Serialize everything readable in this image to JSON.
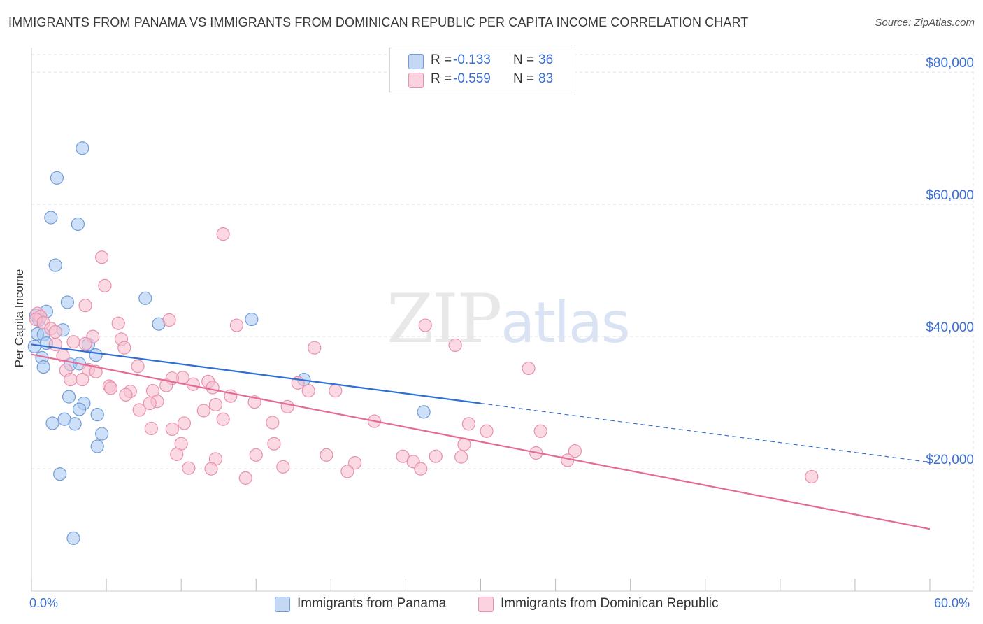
{
  "title": "IMMIGRANTS FROM PANAMA VS IMMIGRANTS FROM DOMINICAN REPUBLIC PER CAPITA INCOME CORRELATION CHART",
  "source": "Source: ZipAtlas.com",
  "watermark": {
    "zip": "ZIP",
    "atlas": "atlas"
  },
  "colors": {
    "blue_fill": "#aecbf2",
    "blue_stroke": "#6f9bd8",
    "blue_line": "#2e6fd3",
    "pink_fill": "#f7bfd0",
    "pink_stroke": "#e890ad",
    "pink_line": "#e36b95",
    "tick_text": "#3a6fd6",
    "grid": "#e2e2e2"
  },
  "legend": {
    "rows": [
      {
        "r_label": "R =",
        "r_value": "-0.133",
        "n_label": "N =",
        "n_value": "36"
      },
      {
        "r_label": "R =",
        "r_value": "-0.559",
        "n_label": "N =",
        "n_value": "83"
      }
    ]
  },
  "bottom_legend": {
    "panama": "Immigrants from Panama",
    "dominican": "Immigrants from Dominican Republic"
  },
  "chart_data": {
    "type": "scatter",
    "title": "IMMIGRANTS FROM PANAMA VS IMMIGRANTS FROM DOMINICAN REPUBLIC PER CAPITA INCOME CORRELATION CHART",
    "xlabel": "",
    "ylabel": "Per Capita Income",
    "xlim": [
      0,
      60
    ],
    "ylim": [
      1500,
      83500
    ],
    "x_tick_labels": [
      "0.0%",
      "60.0%"
    ],
    "y_ticks": [
      20000,
      40000,
      60000,
      80000
    ],
    "y_tick_labels": [
      "$20,000",
      "$40,000",
      "$60,000",
      "$80,000"
    ],
    "series": [
      {
        "name": "Immigrants from Panama",
        "color": "blue",
        "points": [
          [
            3.4,
            68500
          ],
          [
            1.7,
            64000
          ],
          [
            1.3,
            58000
          ],
          [
            3.1,
            57000
          ],
          [
            1.6,
            50800
          ],
          [
            7.6,
            45800
          ],
          [
            2.4,
            45200
          ],
          [
            1.0,
            43800
          ],
          [
            0.3,
            43200
          ],
          [
            0.5,
            42500
          ],
          [
            14.7,
            42600
          ],
          [
            8.5,
            41900
          ],
          [
            2.1,
            41000
          ],
          [
            0.4,
            40400
          ],
          [
            0.8,
            40300
          ],
          [
            1.0,
            39000
          ],
          [
            3.8,
            38800
          ],
          [
            4.3,
            37200
          ],
          [
            0.7,
            36800
          ],
          [
            2.6,
            35800
          ],
          [
            3.2,
            35900
          ],
          [
            0.8,
            35400
          ],
          [
            18.2,
            33500
          ],
          [
            2.5,
            30900
          ],
          [
            3.5,
            29900
          ],
          [
            3.2,
            29000
          ],
          [
            26.2,
            28600
          ],
          [
            4.4,
            28200
          ],
          [
            2.2,
            27500
          ],
          [
            1.4,
            26900
          ],
          [
            2.9,
            26800
          ],
          [
            4.7,
            25300
          ],
          [
            4.4,
            23400
          ],
          [
            1.9,
            19200
          ],
          [
            2.8,
            9500
          ],
          [
            0.2,
            38500
          ]
        ],
        "trend": {
          "x": [
            0,
            30
          ],
          "y": [
            38800,
            29900
          ],
          "extended_to": [
            60,
            21000
          ]
        }
      },
      {
        "name": "Immigrants from Dominican Republic",
        "color": "pink",
        "points": [
          [
            12.8,
            55500
          ],
          [
            4.7,
            52000
          ],
          [
            4.9,
            47700
          ],
          [
            3.6,
            44700
          ],
          [
            0.4,
            43500
          ],
          [
            0.6,
            43000
          ],
          [
            0.3,
            42600
          ],
          [
            0.8,
            42100
          ],
          [
            9.2,
            42500
          ],
          [
            5.8,
            42000
          ],
          [
            13.7,
            41700
          ],
          [
            26.3,
            41700
          ],
          [
            1.3,
            41200
          ],
          [
            1.6,
            40700
          ],
          [
            4.1,
            40000
          ],
          [
            6.0,
            39600
          ],
          [
            2.8,
            39200
          ],
          [
            3.6,
            38900
          ],
          [
            1.6,
            38800
          ],
          [
            28.3,
            38700
          ],
          [
            18.9,
            38300
          ],
          [
            6.2,
            38300
          ],
          [
            2.1,
            37100
          ],
          [
            7.1,
            35500
          ],
          [
            33.2,
            35200
          ],
          [
            3.8,
            35000
          ],
          [
            2.3,
            34900
          ],
          [
            4.3,
            34700
          ],
          [
            10.1,
            33800
          ],
          [
            9.4,
            33700
          ],
          [
            2.6,
            33500
          ],
          [
            3.4,
            33500
          ],
          [
            11.8,
            33200
          ],
          [
            17.8,
            33000
          ],
          [
            10.8,
            32800
          ],
          [
            9.0,
            32600
          ],
          [
            12.1,
            32300
          ],
          [
            5.2,
            32500
          ],
          [
            5.3,
            32200
          ],
          [
            6.6,
            31700
          ],
          [
            8.1,
            31800
          ],
          [
            18.5,
            31800
          ],
          [
            20.3,
            31800
          ],
          [
            6.3,
            31200
          ],
          [
            13.3,
            31000
          ],
          [
            8.4,
            30200
          ],
          [
            14.9,
            30100
          ],
          [
            7.9,
            29900
          ],
          [
            12.3,
            29700
          ],
          [
            17.1,
            29400
          ],
          [
            7.2,
            28900
          ],
          [
            11.5,
            28800
          ],
          [
            12.8,
            27500
          ],
          [
            22.9,
            27200
          ],
          [
            16.1,
            27000
          ],
          [
            10.2,
            26900
          ],
          [
            29.2,
            26800
          ],
          [
            8.0,
            26100
          ],
          [
            9.4,
            26000
          ],
          [
            30.4,
            25700
          ],
          [
            34.0,
            25700
          ],
          [
            10.0,
            23800
          ],
          [
            16.2,
            23800
          ],
          [
            28.9,
            23700
          ],
          [
            36.3,
            22700
          ],
          [
            33.7,
            22400
          ],
          [
            9.7,
            22200
          ],
          [
            15.0,
            22100
          ],
          [
            19.7,
            22100
          ],
          [
            24.8,
            21900
          ],
          [
            27.0,
            21900
          ],
          [
            28.7,
            21800
          ],
          [
            25.5,
            21100
          ],
          [
            35.8,
            21300
          ],
          [
            12.3,
            21500
          ],
          [
            21.6,
            20900
          ],
          [
            26.0,
            20000
          ],
          [
            10.5,
            20100
          ],
          [
            16.8,
            20300
          ],
          [
            12.0,
            20000
          ],
          [
            21.1,
            19600
          ],
          [
            14.3,
            18600
          ],
          [
            52.1,
            18800
          ]
        ],
        "trend": {
          "x": [
            0,
            60
          ],
          "y": [
            37300,
            10900
          ]
        }
      }
    ]
  }
}
